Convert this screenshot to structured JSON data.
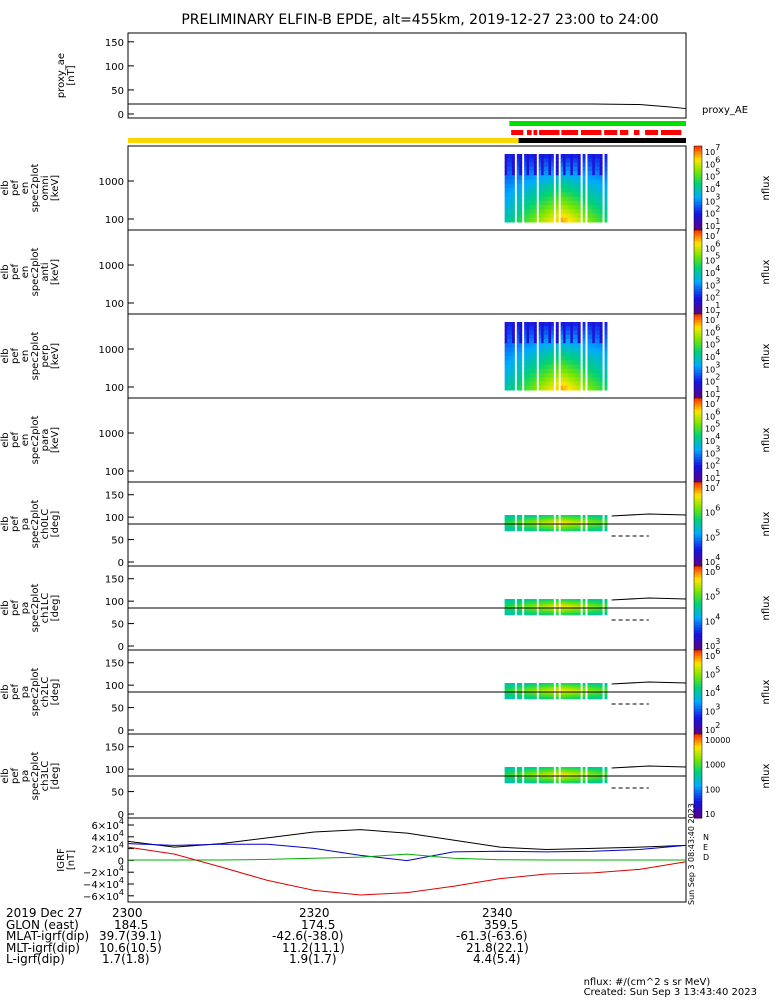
{
  "title": "PRELIMINARY ELFIN-B EPDE, alt=455km, 2019-12-27 23:00 to 24:00",
  "side_stamp": "Sun Sep  3 08:43:40 2023",
  "panels": [
    {
      "id": "proxy_ae",
      "ylabel": [
        "proxy_ae",
        "[nT]"
      ],
      "right_label": "proxy_AE",
      "yticks": [
        "150",
        "100",
        "50",
        "0"
      ],
      "ylim": [
        -10,
        160
      ]
    },
    {
      "id": "omni",
      "ylabel": [
        "elb",
        "pef",
        "en",
        "spec2plot",
        "omni",
        "[keV]"
      ],
      "yticks": [
        "1000",
        "100"
      ],
      "colorbar_label": "nflux",
      "colorbar_ticks": [
        "10^7",
        "10^6",
        "10^5",
        "10^4",
        "10^3",
        "10^2",
        "10^1"
      ]
    },
    {
      "id": "anti",
      "ylabel": [
        "elb",
        "pef",
        "en",
        "spec2plot",
        "anti",
        "[keV]"
      ],
      "yticks": [
        "1000",
        "100"
      ],
      "colorbar_label": "nflux",
      "colorbar_ticks": [
        "10^7",
        "10^6",
        "10^5",
        "10^4",
        "10^3",
        "10^2",
        "10^1"
      ]
    },
    {
      "id": "perp",
      "ylabel": [
        "elb",
        "pef",
        "en",
        "spec2plot",
        "perp",
        "[keV]"
      ],
      "yticks": [
        "1000",
        "100"
      ],
      "colorbar_label": "nflux",
      "colorbar_ticks": [
        "10^7",
        "10^6",
        "10^5",
        "10^4",
        "10^3",
        "10^2",
        "10^1"
      ]
    },
    {
      "id": "para",
      "ylabel": [
        "elb",
        "pef",
        "en",
        "spec2plot",
        "para",
        "[keV]"
      ],
      "yticks": [
        "1000",
        "100"
      ],
      "colorbar_label": "nflux",
      "colorbar_ticks": [
        "10^7",
        "10^6",
        "10^5",
        "10^4",
        "10^3",
        "10^2",
        "10^1"
      ]
    },
    {
      "id": "ch0LC",
      "ylabel": [
        "elb",
        "pef",
        "pa",
        "spec2plot",
        "ch0LC",
        "[deg]"
      ],
      "yticks": [
        "150",
        "100",
        "50",
        "0"
      ],
      "colorbar_label": "nflux",
      "colorbar_ticks": [
        "10^7",
        "10^6",
        "10^5",
        "10^4"
      ]
    },
    {
      "id": "ch1LC",
      "ylabel": [
        "elb",
        "pef",
        "pa",
        "spec2plot",
        "ch1LC",
        "[deg]"
      ],
      "yticks": [
        "150",
        "100",
        "50",
        "0"
      ],
      "colorbar_label": "nflux",
      "colorbar_ticks": [
        "10^6",
        "10^5",
        "10^4",
        "10^3"
      ]
    },
    {
      "id": "ch2LC",
      "ylabel": [
        "elb",
        "pef",
        "pa",
        "spec2plot",
        "ch2LC",
        "[deg]"
      ],
      "yticks": [
        "150",
        "100",
        "50",
        "0"
      ],
      "colorbar_label": "nflux",
      "colorbar_ticks": [
        "10^6",
        "10^5",
        "10^4",
        "10^3",
        "10^2"
      ]
    },
    {
      "id": "ch3LC",
      "ylabel": [
        "elb",
        "pef",
        "pa",
        "spec2plot",
        "ch3LC",
        "[deg]"
      ],
      "yticks": [
        "150",
        "100",
        "50",
        "0"
      ],
      "colorbar_label": "nflux",
      "colorbar_ticks": [
        "10000",
        "1000",
        "100",
        "10"
      ]
    },
    {
      "id": "igrf",
      "ylabel": [
        "IGRF",
        "[nT]"
      ],
      "yticks": [
        "6×10^4",
        "4×10^4",
        "2×10^4",
        "0",
        "−2×10^4",
        "−4×10^4",
        "−6×10^4"
      ],
      "legend": [
        "N",
        "E",
        "D"
      ],
      "legend_colors": [
        "#000000",
        "#0000ff",
        "#ff0000"
      ]
    }
  ],
  "colors": {
    "flag_yellow": "#ffd700",
    "flag_black": "#000000",
    "flag_green": "#00e000",
    "flag_red": "#ff0000",
    "igrf_total": "#000000",
    "igrf_n": "#0000cc",
    "igrf_e": "#00b000",
    "igrf_d": "#dd0000"
  },
  "chart_data": {
    "type": "line",
    "title": "PRELIMINARY ELFIN-B EPDE, alt=455km, 2019-12-27 23:00 to 24:00",
    "x_ticks": [
      "2300",
      "2320",
      "2340"
    ],
    "x_range_min": [
      0,
      60
    ],
    "proxy_ae": {
      "ylim": [
        -10,
        160
      ],
      "x_min": [
        0,
        50,
        55,
        58,
        60
      ],
      "values": [
        12,
        12,
        11,
        6,
        2
      ]
    },
    "igrf": {
      "ylim": [
        -60000,
        60000
      ],
      "x_min": [
        0,
        5,
        10,
        15,
        20,
        25,
        30,
        35,
        40,
        45,
        50,
        55,
        60
      ],
      "series": [
        {
          "name": "black",
          "values": [
            32000,
            22000,
            28000,
            38000,
            48000,
            52000,
            46000,
            34000,
            22000,
            18000,
            20000,
            22000,
            25000
          ]
        },
        {
          "name": "blue",
          "values": [
            28000,
            25000,
            27000,
            27000,
            20000,
            8000,
            -1000,
            14000,
            15000,
            14000,
            15000,
            18000,
            25000
          ]
        },
        {
          "name": "green",
          "values": [
            0,
            0,
            0,
            1000,
            3000,
            5000,
            10000,
            3000,
            500,
            0,
            0,
            0,
            0
          ]
        },
        {
          "name": "red",
          "values": [
            22000,
            10000,
            -12000,
            -35000,
            -52000,
            -60000,
            -56000,
            -45000,
            -32000,
            -24000,
            -22000,
            -16000,
            -3000
          ]
        }
      ]
    },
    "spectrogram_time_min": [
      40.5,
      51.5
    ]
  },
  "footer": {
    "rows": [
      {
        "label": "2019 Dec 27",
        "values": [
          "2300",
          "2320",
          "2340"
        ]
      },
      {
        "label": "GLON (east)",
        "values": [
          "184.5",
          "174.5",
          "359.5"
        ]
      },
      {
        "label": "MLAT-igrf(dip)",
        "values": [
          "39.7(39.1)",
          "-42.6(-38.0)",
          "-61.3(-63.6)"
        ]
      },
      {
        "label": "MLT-igrf(dip)",
        "values": [
          "10.6(10.5)",
          "11.2(11.1)",
          "21.8(22.1)"
        ]
      },
      {
        "label": "L-igrf(dip)",
        "values": [
          "1.7(1.8)",
          "1.9(1.7)",
          "4.4(5.4)"
        ]
      }
    ],
    "units": "nflux: #/(cm^2 s sr MeV)",
    "created": "Created: Sun Sep  3 13:43:40 2023"
  }
}
